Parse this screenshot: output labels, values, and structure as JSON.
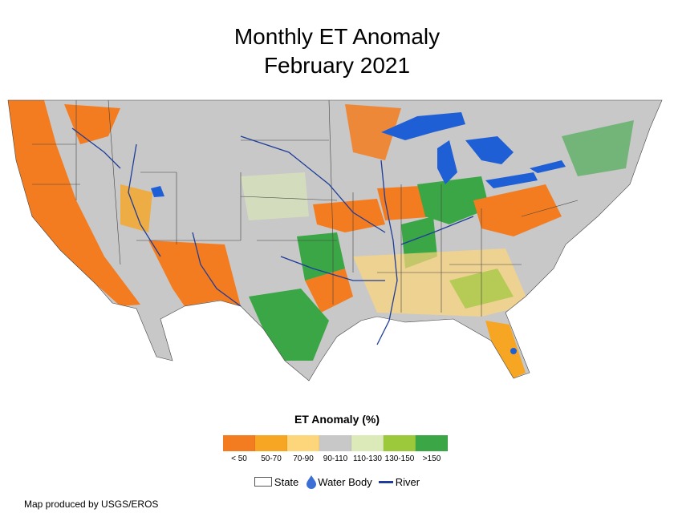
{
  "title": [
    "Monthly ET Anomaly",
    "February 2021"
  ],
  "legend": {
    "title": "ET Anomaly (%)",
    "classes": [
      {
        "label": "< 50",
        "color": "#f47c20"
      },
      {
        "label": "50-70",
        "color": "#f6a623"
      },
      {
        "label": "70-90",
        "color": "#fdd57a"
      },
      {
        "label": "90-110",
        "color": "#c8c8c8"
      },
      {
        "label": "110-130",
        "color": "#dce9b8"
      },
      {
        "label": "130-150",
        "color": "#9cc83c"
      },
      {
        "label": ">150",
        "color": "#3aa645"
      }
    ]
  },
  "reference_legend": {
    "state": "State",
    "water_body": "Water Body",
    "river": "River",
    "water_color": "#1f5fd6",
    "river_color": "#1f3d99"
  },
  "credit": "Map produced by USGS/EROS"
}
